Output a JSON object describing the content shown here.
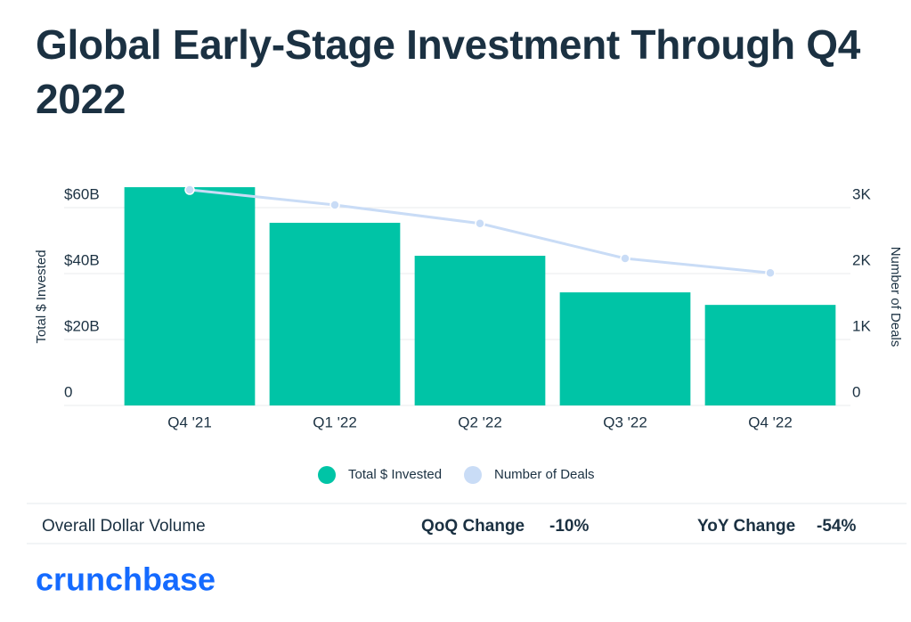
{
  "chart_data": {
    "type": "bar-line",
    "title": "Global Early-Stage Investment Through Q4 2022",
    "y_label": "Total $ Invested",
    "y2_label": "Number of Deals",
    "categories": [
      "Q4 '21",
      "Q1 '22",
      "Q2 '22",
      "Q3 '22",
      "Q4 '22"
    ],
    "series": [
      {
        "name": "Total $ Invested",
        "type": "bar",
        "color": "#00c4a6",
        "values": [
          66.2,
          55.4,
          45.4,
          34.3,
          30.5
        ]
      },
      {
        "name": "Number of Deals",
        "type": "line",
        "axis": "y2",
        "color": "#c9dcf6",
        "values": [
          3270,
          3040,
          2760,
          2230,
          2010
        ]
      }
    ],
    "ylim": [
      0,
      70
    ],
    "yticks": [
      0,
      {
        "value": 20,
        "label": "$20B"
      },
      {
        "value": 40,
        "label": "$40B"
      },
      {
        "value": 60,
        "label": "$60B"
      }
    ],
    "y2lim": [
      0,
      3500
    ],
    "y2ticks": [
      0,
      {
        "value": 1000,
        "label": "1K"
      },
      {
        "value": 2000,
        "label": "2K"
      },
      {
        "value": 3000,
        "label": "3K"
      }
    ],
    "grid": true
  },
  "summary": {
    "label": "Overall Dollar Volume",
    "qoq_label": "QoQ Change",
    "qoq_value": "-10%",
    "yoy_label": "YoY Change",
    "yoy_value": "-54%"
  },
  "brand": "crunchbase"
}
